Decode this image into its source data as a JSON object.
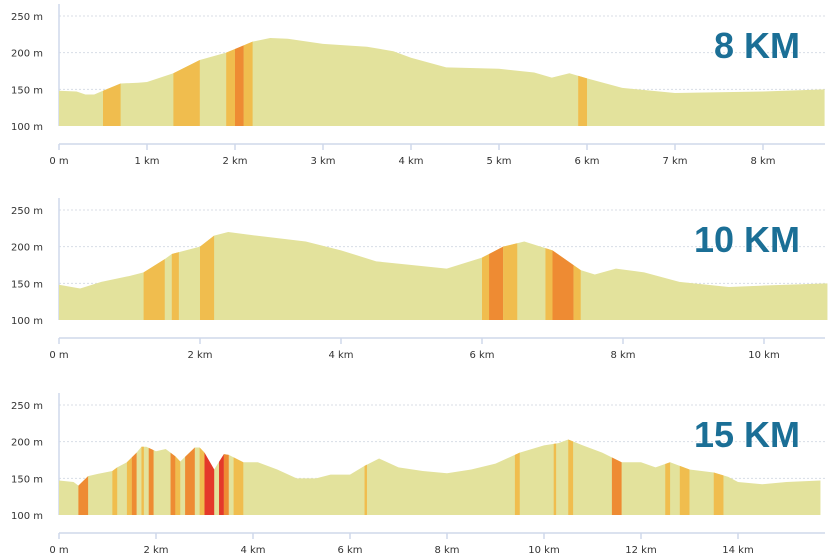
{
  "colors": {
    "base": "#e3e29c",
    "level1": "#f0bd4e",
    "level2": "#ee8b33",
    "level3": "#e4392a",
    "title": "#1b6f96"
  },
  "chart_data": [
    {
      "type": "area",
      "title": "8 KM",
      "xlabel": "",
      "ylabel": "",
      "ylim": [
        100,
        250
      ],
      "xlim": [
        0,
        8.7
      ],
      "yticks": [
        {
          "v": 250,
          "label": "250 m"
        },
        {
          "v": 200,
          "label": "200 m"
        },
        {
          "v": 150,
          "label": "150 m"
        },
        {
          "v": 100,
          "label": "100 m"
        }
      ],
      "xticks": [
        {
          "v": 0,
          "label": "0 m"
        },
        {
          "v": 1,
          "label": "1 km"
        },
        {
          "v": 2,
          "label": "2 km"
        },
        {
          "v": 3,
          "label": "3 km"
        },
        {
          "v": 4,
          "label": "4 km"
        },
        {
          "v": 5,
          "label": "5 km"
        },
        {
          "v": 6,
          "label": "6 km"
        },
        {
          "v": 7,
          "label": "7 km"
        },
        {
          "v": 8,
          "label": "8 km"
        }
      ],
      "profile": [
        [
          0,
          148
        ],
        [
          0.2,
          147
        ],
        [
          0.3,
          143
        ],
        [
          0.4,
          143
        ],
        [
          0.5,
          148
        ],
        [
          0.7,
          158
        ],
        [
          0.9,
          159
        ],
        [
          1,
          160
        ],
        [
          1.3,
          172
        ],
        [
          1.6,
          190
        ],
        [
          1.9,
          200
        ],
        [
          2.0,
          205
        ],
        [
          2.2,
          215
        ],
        [
          2.4,
          220
        ],
        [
          2.6,
          219
        ],
        [
          3.0,
          212
        ],
        [
          3.5,
          208
        ],
        [
          3.8,
          202
        ],
        [
          4.0,
          193
        ],
        [
          4.4,
          180
        ],
        [
          5.0,
          178
        ],
        [
          5.4,
          173
        ],
        [
          5.6,
          166
        ],
        [
          5.8,
          172
        ],
        [
          6.0,
          165
        ],
        [
          6.4,
          152
        ],
        [
          7.0,
          145
        ],
        [
          7.5,
          146
        ],
        [
          8.0,
          147
        ],
        [
          8.7,
          150
        ]
      ],
      "segments": [
        [
          0.5,
          0.7,
          1
        ],
        [
          1.3,
          1.6,
          1
        ],
        [
          1.9,
          2.0,
          1
        ],
        [
          2.0,
          2.1,
          2
        ],
        [
          2.1,
          2.2,
          1
        ],
        [
          5.9,
          6.0,
          1
        ]
      ]
    },
    {
      "type": "area",
      "title": "10 KM",
      "xlabel": "",
      "ylabel": "",
      "ylim": [
        100,
        250
      ],
      "xlim": [
        0,
        10.9
      ],
      "yticks": [
        {
          "v": 250,
          "label": "250 m"
        },
        {
          "v": 200,
          "label": "200 m"
        },
        {
          "v": 150,
          "label": "150 m"
        },
        {
          "v": 100,
          "label": "100 m"
        }
      ],
      "xticks": [
        {
          "v": 0,
          "label": "0 m"
        },
        {
          "v": 2,
          "label": "2 km"
        },
        {
          "v": 4,
          "label": "4 km"
        },
        {
          "v": 6,
          "label": "6 km"
        },
        {
          "v": 8,
          "label": "8 km"
        },
        {
          "v": 10,
          "label": "10 km"
        }
      ],
      "profile": [
        [
          0,
          148
        ],
        [
          0.3,
          143
        ],
        [
          0.6,
          152
        ],
        [
          1,
          160
        ],
        [
          1.2,
          165
        ],
        [
          1.5,
          183
        ],
        [
          1.6,
          190
        ],
        [
          2,
          200
        ],
        [
          2.2,
          215
        ],
        [
          2.4,
          220
        ],
        [
          2.8,
          215
        ],
        [
          3.5,
          207
        ],
        [
          4,
          195
        ],
        [
          4.5,
          180
        ],
        [
          5,
          175
        ],
        [
          5.5,
          170
        ],
        [
          6,
          185
        ],
        [
          6.3,
          200
        ],
        [
          6.6,
          207
        ],
        [
          7,
          195
        ],
        [
          7.4,
          168
        ],
        [
          7.6,
          162
        ],
        [
          7.9,
          170
        ],
        [
          8.3,
          165
        ],
        [
          8.8,
          152
        ],
        [
          9.5,
          145
        ],
        [
          10,
          147
        ],
        [
          10.9,
          150
        ]
      ],
      "segments": [
        [
          1.2,
          1.5,
          1
        ],
        [
          1.6,
          1.7,
          1
        ],
        [
          2.0,
          2.2,
          1
        ],
        [
          6.0,
          6.1,
          1
        ],
        [
          6.1,
          6.3,
          2
        ],
        [
          6.3,
          6.5,
          1
        ],
        [
          6.9,
          7.0,
          1
        ],
        [
          7.0,
          7.3,
          2
        ],
        [
          7.3,
          7.4,
          1
        ]
      ]
    },
    {
      "type": "area",
      "title": "15 KM",
      "xlabel": "",
      "ylabel": "",
      "ylim": [
        100,
        250
      ],
      "xlim": [
        0,
        15.7
      ],
      "yticks": [
        {
          "v": 250,
          "label": "250 m"
        },
        {
          "v": 200,
          "label": "200 m"
        },
        {
          "v": 150,
          "label": "150 m"
        },
        {
          "v": 100,
          "label": "100 m"
        }
      ],
      "xticks": [
        {
          "v": 0,
          "label": "0 m"
        },
        {
          "v": 2,
          "label": "2 km"
        },
        {
          "v": 4,
          "label": "4 km"
        },
        {
          "v": 6,
          "label": "6 km"
        },
        {
          "v": 8,
          "label": "8 km"
        },
        {
          "v": 10,
          "label": "10 km"
        },
        {
          "v": 12,
          "label": "12 km"
        },
        {
          "v": 14,
          "label": "14 km"
        }
      ],
      "profile": [
        [
          0,
          147
        ],
        [
          0.3,
          145
        ],
        [
          0.4,
          140
        ],
        [
          0.6,
          153
        ],
        [
          0.8,
          156
        ],
        [
          1.1,
          160
        ],
        [
          1.2,
          165
        ],
        [
          1.4,
          172
        ],
        [
          1.6,
          185
        ],
        [
          1.7,
          193
        ],
        [
          1.8,
          193
        ],
        [
          2.0,
          187
        ],
        [
          2.2,
          190
        ],
        [
          2.4,
          180
        ],
        [
          2.5,
          173
        ],
        [
          2.8,
          192
        ],
        [
          2.9,
          192
        ],
        [
          3.0,
          185
        ],
        [
          3.2,
          162
        ],
        [
          3.4,
          183
        ],
        [
          3.5,
          182
        ],
        [
          3.8,
          172
        ],
        [
          4.1,
          172
        ],
        [
          4.5,
          162
        ],
        [
          4.9,
          150
        ],
        [
          5.3,
          150
        ],
        [
          5.6,
          155
        ],
        [
          6.0,
          155
        ],
        [
          6.3,
          167
        ],
        [
          6.6,
          177
        ],
        [
          7,
          165
        ],
        [
          7.5,
          160
        ],
        [
          8,
          157
        ],
        [
          8.5,
          162
        ],
        [
          9,
          170
        ],
        [
          9.5,
          185
        ],
        [
          10,
          195
        ],
        [
          10.3,
          198
        ],
        [
          10.5,
          203
        ],
        [
          10.8,
          195
        ],
        [
          11.2,
          185
        ],
        [
          11.6,
          172
        ],
        [
          12,
          172
        ],
        [
          12.3,
          165
        ],
        [
          12.6,
          172
        ],
        [
          13,
          162
        ],
        [
          13.5,
          158
        ],
        [
          13.8,
          152
        ],
        [
          14,
          145
        ],
        [
          14.5,
          142
        ],
        [
          15,
          145
        ],
        [
          15.7,
          147
        ]
      ],
      "segments": [
        [
          0.4,
          0.6,
          2
        ],
        [
          1.1,
          1.2,
          1
        ],
        [
          1.4,
          1.5,
          1
        ],
        [
          1.5,
          1.6,
          2
        ],
        [
          1.7,
          1.75,
          1
        ],
        [
          1.85,
          1.95,
          2
        ],
        [
          2.3,
          2.4,
          2
        ],
        [
          2.4,
          2.5,
          1
        ],
        [
          2.6,
          2.8,
          2
        ],
        [
          2.9,
          3.0,
          1
        ],
        [
          3.0,
          3.2,
          3
        ],
        [
          3.3,
          3.4,
          3
        ],
        [
          3.4,
          3.5,
          2
        ],
        [
          3.6,
          3.8,
          1
        ],
        [
          6.3,
          6.35,
          1
        ],
        [
          9.4,
          9.5,
          1
        ],
        [
          10.2,
          10.25,
          1
        ],
        [
          10.5,
          10.6,
          1
        ],
        [
          11.4,
          11.6,
          2
        ],
        [
          12.5,
          12.6,
          1
        ],
        [
          12.8,
          13.0,
          1
        ],
        [
          13.5,
          13.7,
          1
        ]
      ]
    }
  ]
}
